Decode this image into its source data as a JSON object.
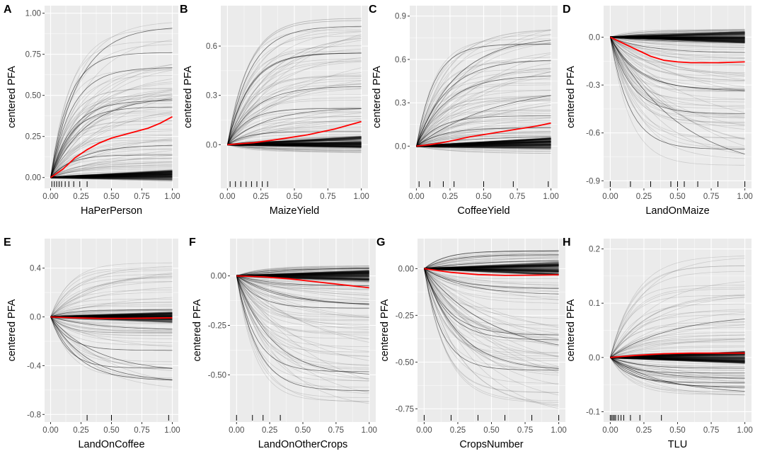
{
  "figure": {
    "colors": {
      "panel_bg": "#EBEBEB",
      "grid_major": "#FFFFFF",
      "ice_line": "#000000",
      "pdp_line": "#FF0000",
      "tick_text": "#4D4D4D",
      "rug": "#000000"
    }
  },
  "chart_data": [
    {
      "type": "line",
      "panel": "A",
      "xlabel": "HaPerPerson",
      "ylabel": "centered PFA",
      "xlim": [
        0,
        1
      ],
      "ylim": [
        -0.02,
        1.0
      ],
      "x_ticks": [
        "0.00",
        "0.25",
        "0.50",
        "0.75",
        "1.00"
      ],
      "y_ticks": [
        "0.00",
        "0.25",
        "0.50",
        "0.75",
        "1.00"
      ],
      "y_tick_values": [
        0,
        0.25,
        0.5,
        0.75,
        1.0
      ],
      "pdp_line": {
        "x": [
          0,
          0.1,
          0.2,
          0.3,
          0.4,
          0.5,
          0.6,
          0.7,
          0.8,
          0.9,
          1.0
        ],
        "y": [
          0,
          0.05,
          0.12,
          0.17,
          0.21,
          0.24,
          0.26,
          0.28,
          0.3,
          0.33,
          0.37
        ]
      },
      "ice_range": {
        "min_end": -0.01,
        "max_end": 0.95,
        "shape": "rising"
      },
      "rug": [
        0.01,
        0.03,
        0.05,
        0.07,
        0.09,
        0.12,
        0.15,
        0.19,
        0.24,
        0.3
      ]
    },
    {
      "type": "line",
      "panel": "B",
      "xlabel": "MaizeYield",
      "ylabel": "centered PFA",
      "xlim": [
        0,
        1
      ],
      "ylim": [
        -0.22,
        0.8
      ],
      "x_ticks": [
        "0.00",
        "0.25",
        "0.50",
        "0.75",
        "1.00"
      ],
      "y_ticks": [
        "0.0",
        "0.3",
        "0.6"
      ],
      "y_tick_values": [
        0,
        0.3,
        0.6
      ],
      "pdp_line": {
        "x": [
          0,
          0.2,
          0.4,
          0.6,
          0.8,
          1.0
        ],
        "y": [
          0,
          0.012,
          0.035,
          0.06,
          0.095,
          0.14
        ]
      },
      "ice_range": {
        "min_end": -0.05,
        "max_end": 0.78,
        "shape": "rising"
      },
      "rug": [
        0.02,
        0.06,
        0.1,
        0.14,
        0.18,
        0.22,
        0.26,
        0.3
      ]
    },
    {
      "type": "line",
      "panel": "C",
      "xlabel": "CoffeeYield",
      "ylabel": "centered PFA",
      "xlim": [
        0,
        1
      ],
      "ylim": [
        -0.24,
        0.92
      ],
      "x_ticks": [
        "0.00",
        "0.25",
        "0.50",
        "0.75",
        "1.00"
      ],
      "y_ticks": [
        "0.0",
        "0.3",
        "0.6",
        "0.9"
      ],
      "y_tick_values": [
        0,
        0.3,
        0.6,
        0.9
      ],
      "pdp_line": {
        "x": [
          0,
          0.1,
          0.2,
          0.3,
          0.4,
          0.5,
          0.6,
          0.7,
          0.8,
          0.9,
          1.0
        ],
        "y": [
          0,
          0.01,
          0.025,
          0.045,
          0.065,
          0.08,
          0.095,
          0.11,
          0.125,
          0.14,
          0.16
        ]
      },
      "ice_range": {
        "min_end": -0.05,
        "max_end": 0.86,
        "shape": "rising"
      },
      "rug": [
        0.02,
        0.1,
        0.2,
        0.28,
        0.5,
        0.72,
        0.98
      ]
    },
    {
      "type": "line",
      "panel": "D",
      "xlabel": "LandOnMaize",
      "ylabel": "centered PFA",
      "xlim": [
        0,
        1
      ],
      "ylim": [
        -0.9,
        0.15
      ],
      "x_ticks": [
        "0.00",
        "0.25",
        "0.50",
        "0.75",
        "1.00"
      ],
      "y_ticks": [
        "0.0",
        "-0.3",
        "-0.6",
        "-0.9"
      ],
      "y_tick_values": [
        0,
        -0.3,
        -0.6,
        -0.9
      ],
      "pdp_line": {
        "x": [
          0,
          0.1,
          0.2,
          0.3,
          0.4,
          0.5,
          0.6,
          0.8,
          1.0
        ],
        "y": [
          0,
          -0.04,
          -0.08,
          -0.12,
          -0.145,
          -0.155,
          -0.16,
          -0.16,
          -0.155
        ]
      },
      "ice_range": {
        "min_end": -0.85,
        "max_end": 0.05,
        "shape": "falling"
      },
      "rug": [
        0.0,
        0.15,
        0.3,
        0.45,
        0.5,
        0.55,
        0.65,
        0.8,
        1.0
      ]
    },
    {
      "type": "line",
      "panel": "E",
      "xlabel": "LandOnCoffee",
      "ylabel": "centered PFA",
      "xlim": [
        0,
        1
      ],
      "ylim": [
        -0.8,
        0.58
      ],
      "x_ticks": [
        "0.00",
        "0.25",
        "0.50",
        "0.75",
        "1.00"
      ],
      "y_ticks": [
        "0.4",
        "0.0",
        "-0.4",
        "-0.8"
      ],
      "y_tick_values": [
        0.4,
        0,
        -0.4,
        -0.8
      ],
      "pdp_line": {
        "x": [
          0,
          0.2,
          0.4,
          0.6,
          0.8,
          1.0
        ],
        "y": [
          0,
          -0.008,
          -0.012,
          -0.012,
          -0.01,
          -0.008
        ]
      },
      "ice_range": {
        "min_end": -0.6,
        "max_end": 0.45,
        "shape": "mixed"
      },
      "rug": [
        0.3,
        0.5,
        0.97
      ]
    },
    {
      "type": "line",
      "panel": "F",
      "xlabel": "LandOnOtherCrops",
      "ylabel": "centered PFA",
      "xlim": [
        0,
        1
      ],
      "ylim": [
        -0.7,
        0.15
      ],
      "x_ticks": [
        "0.00",
        "0.25",
        "0.50",
        "0.75",
        "1.00"
      ],
      "y_ticks": [
        "0.00",
        "-0.25",
        "-0.50"
      ],
      "y_tick_values": [
        0,
        -0.25,
        -0.5
      ],
      "pdp_line": {
        "x": [
          0,
          0.2,
          0.4,
          0.6,
          0.8,
          1.0
        ],
        "y": [
          0,
          -0.005,
          -0.015,
          -0.03,
          -0.045,
          -0.06
        ]
      },
      "ice_range": {
        "min_end": -0.68,
        "max_end": 0.05,
        "shape": "falling"
      },
      "rug": [
        0.0,
        0.12,
        0.2,
        0.33
      ]
    },
    {
      "type": "line",
      "panel": "G",
      "xlabel": "CropsNumber",
      "ylabel": "centered PFA",
      "xlim": [
        0,
        1
      ],
      "ylim": [
        -0.78,
        0.12
      ],
      "x_ticks": [
        "0.00",
        "0.25",
        "0.50",
        "0.75",
        "1.00"
      ],
      "y_ticks": [
        "0.00",
        "-0.25",
        "-0.50",
        "-0.75"
      ],
      "y_tick_values": [
        0,
        -0.25,
        -0.5,
        -0.75
      ],
      "pdp_line": {
        "x": [
          0,
          0.2,
          0.4,
          0.6,
          0.8,
          1.0
        ],
        "y": [
          0,
          -0.02,
          -0.032,
          -0.036,
          -0.035,
          -0.033
        ]
      },
      "ice_range": {
        "min_end": -0.75,
        "max_end": 0.1,
        "shape": "falling"
      },
      "rug": [
        0.0,
        0.2,
        0.4,
        0.6,
        0.8,
        1.0
      ]
    },
    {
      "type": "line",
      "panel": "H",
      "xlabel": "TLU",
      "ylabel": "centered PFA",
      "xlim": [
        0,
        1
      ],
      "ylim": [
        -0.105,
        0.205
      ],
      "x_ticks": [
        "0.00",
        "0.25",
        "0.50",
        "0.75",
        "1.00"
      ],
      "y_ticks": [
        "0.2",
        "0.1",
        "0.0",
        "-0.1"
      ],
      "y_tick_values": [
        0.2,
        0.1,
        0,
        -0.1
      ],
      "pdp_line": {
        "x": [
          0,
          0.2,
          0.4,
          0.6,
          0.8,
          1.0
        ],
        "y": [
          0,
          0.004,
          0.007,
          0.008,
          0.008,
          0.008
        ]
      },
      "ice_range": {
        "min_end": -0.08,
        "max_end": 0.19,
        "shape": "fan"
      },
      "rug": [
        0.0,
        0.01,
        0.02,
        0.03,
        0.04,
        0.06,
        0.08,
        0.1,
        0.15,
        0.22,
        0.38
      ]
    }
  ]
}
